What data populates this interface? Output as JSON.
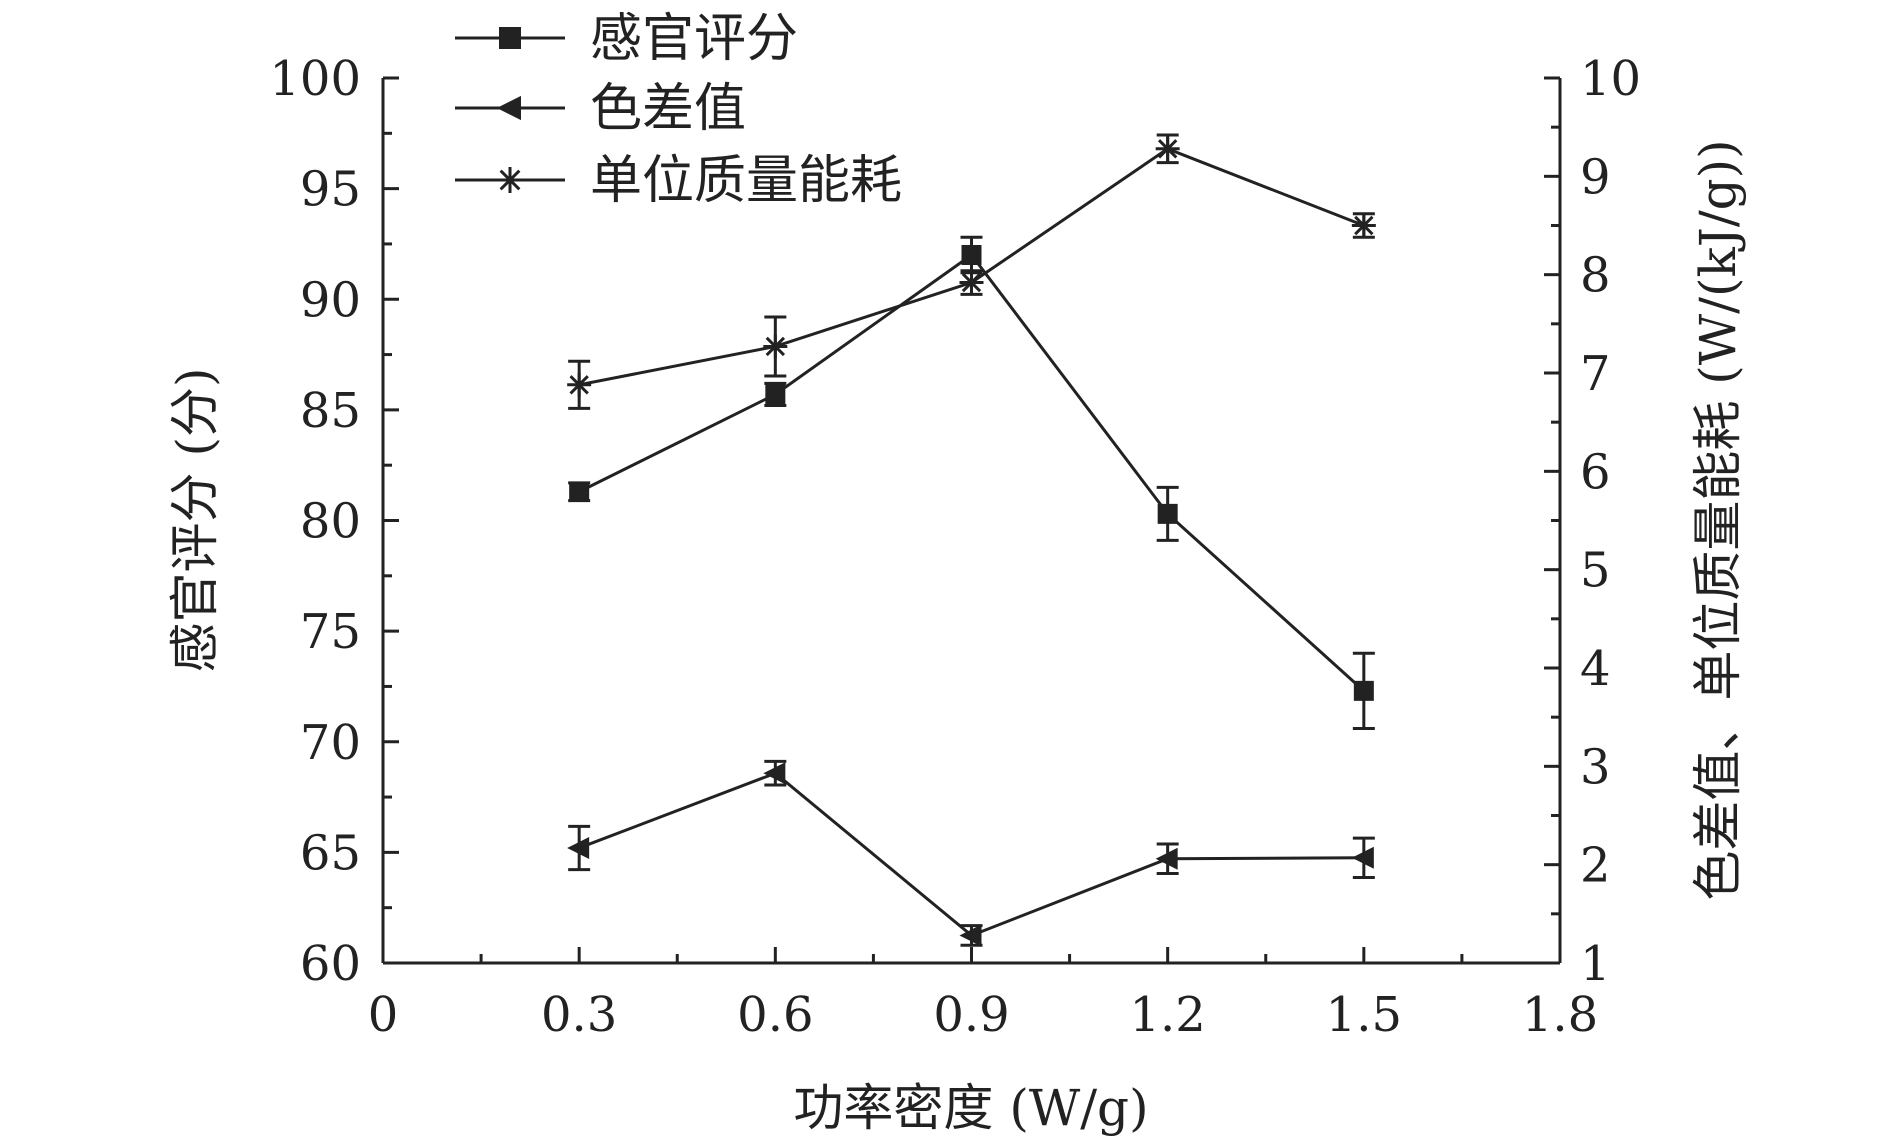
{
  "chart_data": {
    "type": "line",
    "x": [
      0.3,
      0.6,
      0.9,
      1.2,
      1.5
    ],
    "xlabel": "功率密度 (W/g)",
    "xlim": [
      0,
      1.8
    ],
    "x_ticks": [
      "0",
      "0.3",
      "0.6",
      "0.9",
      "1.2",
      "1.5",
      "1.8"
    ],
    "ylabel_left": "感官评分 (分)",
    "ylim_left": [
      60,
      100
    ],
    "y_ticks_left": [
      "60",
      "65",
      "70",
      "75",
      "80",
      "85",
      "90",
      "95",
      "100"
    ],
    "ylabel_right": "色差值、单位质量能耗 (W/(kJ/g))",
    "ylim_right": [
      1,
      10
    ],
    "y_ticks_right": [
      "1",
      "2",
      "3",
      "4",
      "5",
      "6",
      "7",
      "8",
      "9",
      "10"
    ],
    "legend_position": "top-left",
    "series": [
      {
        "name": "感官评分",
        "axis": "left",
        "marker": "square",
        "values": [
          81.3,
          85.7,
          92.0,
          80.3,
          72.3
        ],
        "errors": [
          0.4,
          0.5,
          0.8,
          1.2,
          1.7
        ]
      },
      {
        "name": "色差值",
        "axis": "right",
        "marker": "triangle-left",
        "values": [
          2.17,
          2.93,
          1.28,
          2.06,
          2.07
        ],
        "errors": [
          0.22,
          0.12,
          0.1,
          0.15,
          0.2
        ]
      },
      {
        "name": "单位质量能耗",
        "axis": "right",
        "marker": "asterisk",
        "values": [
          6.88,
          7.27,
          7.92,
          9.28,
          8.5
        ],
        "errors": [
          0.24,
          0.3,
          0.12,
          0.14,
          0.12
        ]
      }
    ]
  }
}
